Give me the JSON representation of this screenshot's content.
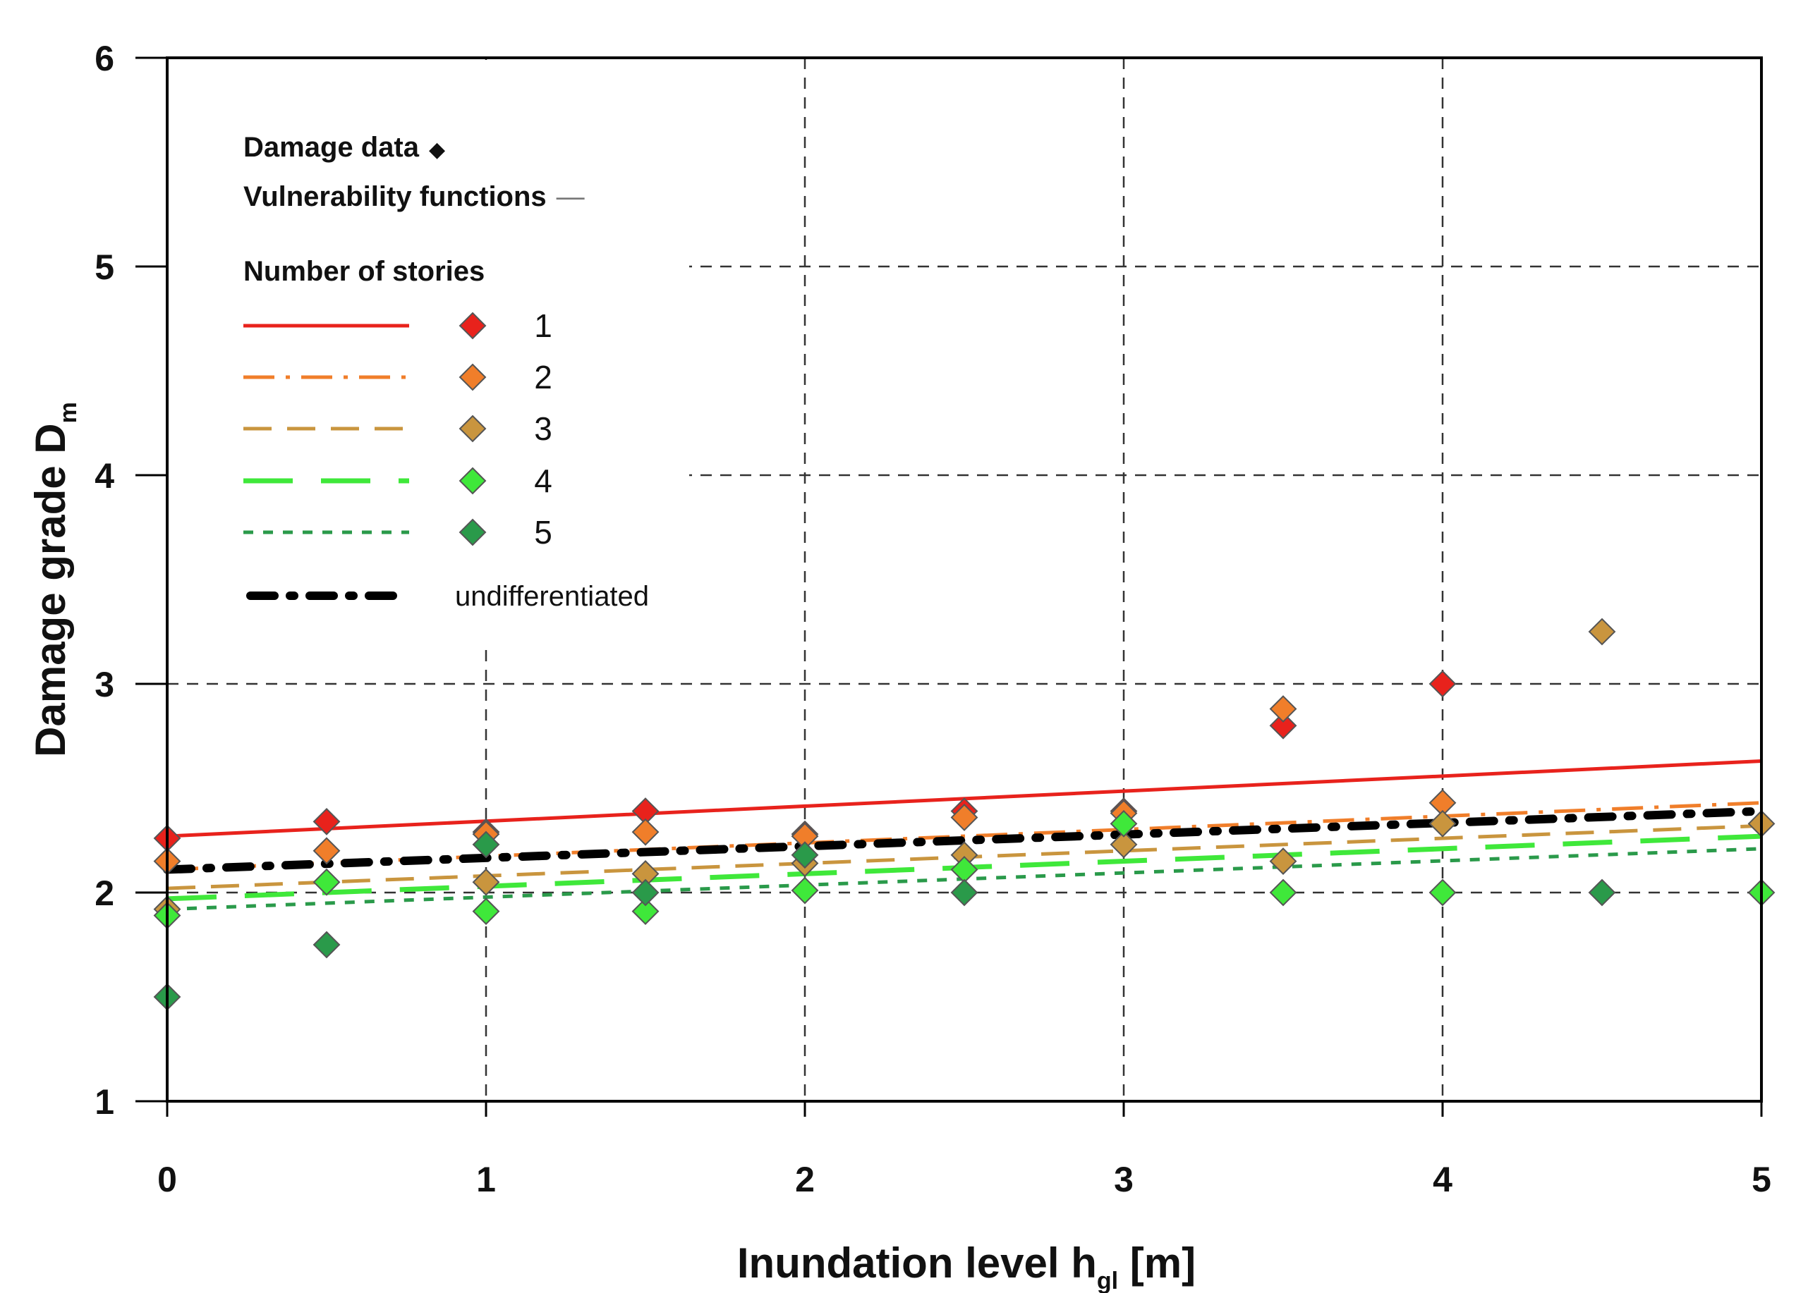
{
  "chart_data": {
    "type": "scatter",
    "xlabel": "Inundation level h",
    "xlabel_sub": "gl",
    "xlabel_unit": " [m]",
    "ylabel": "Damage grade D",
    "ylabel_sub": "m",
    "xlim": [
      0,
      5
    ],
    "ylim": [
      1,
      6
    ],
    "xticks": [
      "0",
      "1",
      "2",
      "3",
      "4",
      "5"
    ],
    "yticks": [
      "1",
      "2",
      "3",
      "4",
      "5",
      "6"
    ],
    "grid": "dashed",
    "legend": {
      "position": "top-left",
      "damage_data_label": "Damage data",
      "damage_data_symbol": "◆",
      "vulnerability_label": "Vulnerability functions",
      "vulnerability_symbol": "—",
      "stories_title": "Number of stories",
      "undifferentiated_label": "undifferentiated"
    },
    "series": [
      {
        "name": "1",
        "color": "#e8221c",
        "dash": "solid",
        "line": [
          2.27,
          2.63
        ],
        "points": [
          [
            0,
            2.26
          ],
          [
            0.5,
            2.34
          ],
          [
            1,
            2.29
          ],
          [
            1.5,
            2.39
          ],
          [
            2,
            2.28
          ],
          [
            2.5,
            2.39
          ],
          [
            3,
            2.39
          ],
          [
            3.5,
            2.8
          ],
          [
            4,
            3.0
          ]
        ]
      },
      {
        "name": "2",
        "color": "#f07e2a",
        "dash": "dashdot",
        "line": [
          2.11,
          2.43
        ],
        "points": [
          [
            0,
            2.15
          ],
          [
            0.5,
            2.2
          ],
          [
            1,
            2.28
          ],
          [
            1.5,
            2.29
          ],
          [
            2,
            2.27
          ],
          [
            2.5,
            2.36
          ],
          [
            3,
            2.38
          ],
          [
            3.5,
            2.88
          ],
          [
            4,
            2.43
          ]
        ]
      },
      {
        "name": "3",
        "color": "#c9953e",
        "dash": "dashed",
        "line": [
          2.02,
          2.32
        ],
        "points": [
          [
            0,
            1.92
          ],
          [
            1,
            2.05
          ],
          [
            1.5,
            2.09
          ],
          [
            2,
            2.14
          ],
          [
            2.5,
            2.18
          ],
          [
            3,
            2.23
          ],
          [
            3.5,
            2.15
          ],
          [
            4,
            2.33
          ],
          [
            4.5,
            3.25
          ],
          [
            5,
            2.33
          ]
        ]
      },
      {
        "name": "4",
        "color": "#3fe83a",
        "dash": "longdash",
        "line": [
          1.97,
          2.27
        ],
        "points": [
          [
            0,
            1.89
          ],
          [
            0.5,
            2.05
          ],
          [
            1,
            1.91
          ],
          [
            1.5,
            1.91
          ],
          [
            2,
            2.01
          ],
          [
            2.5,
            2.11
          ],
          [
            3,
            2.33
          ],
          [
            3.5,
            2.0
          ],
          [
            4,
            2.0
          ],
          [
            5,
            2.0
          ]
        ]
      },
      {
        "name": "5",
        "color": "#2a9a4a",
        "dash": "shortdash",
        "line": [
          1.92,
          2.21
        ],
        "points": [
          [
            0,
            1.5
          ],
          [
            0.5,
            1.75
          ],
          [
            1,
            2.23
          ],
          [
            1.5,
            2.0
          ],
          [
            2,
            2.18
          ],
          [
            2.5,
            2.0
          ],
          [
            4.5,
            2.0
          ]
        ]
      },
      {
        "name": "undifferentiated",
        "color": "#000000",
        "dash": "heavydashdot",
        "line": [
          2.11,
          2.39
        ],
        "points": []
      }
    ]
  }
}
